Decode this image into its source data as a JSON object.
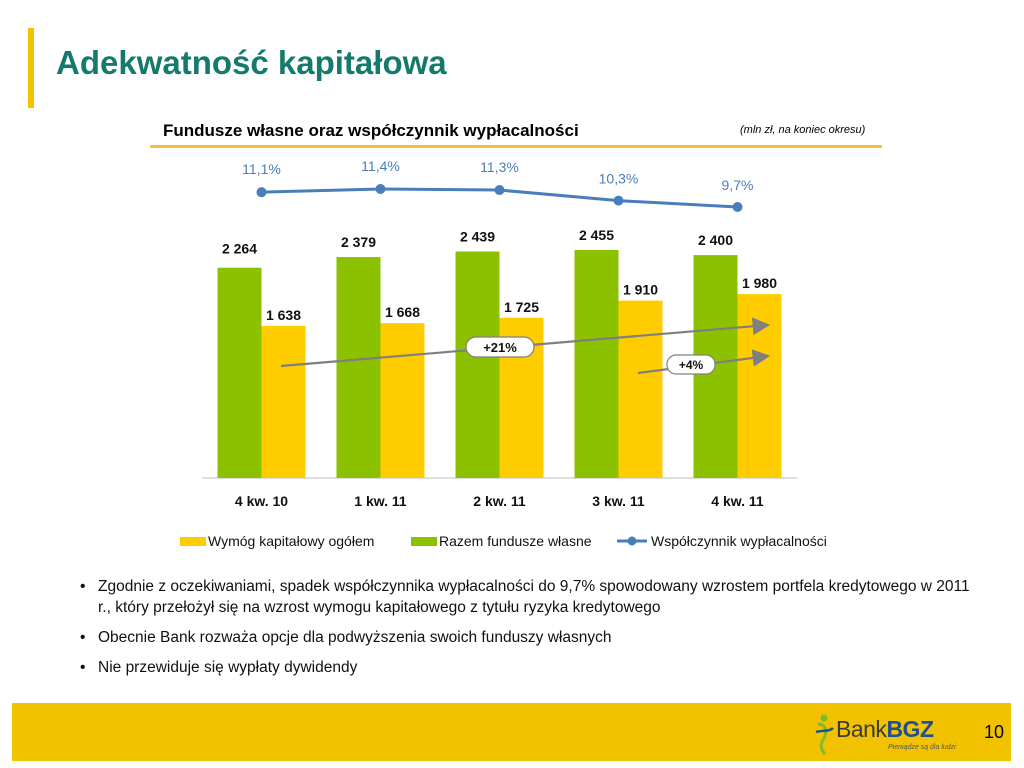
{
  "slide": {
    "title": "Adekwatność kapitałowa",
    "chart_title": "Fundusze własne oraz współczynnik wypłacalności",
    "unit_note": "(mln zł, na koniec okresu)",
    "page_number": "10",
    "logo": {
      "brand_light": "Bank",
      "brand_bold": "BGZ",
      "tagline": "Pieniądze są dla ludzi"
    },
    "bullets": [
      "Zgodnie z oczekiwaniami, spadek współczynnika wypłacalności do 9,7% spowodowany wzrostem portfela kredytowego w 2011 r., który przełożył się na wzrost wymogu kapitałowego z tytułu ryzyka kredytowego",
      "Obecnie Bank rozważa opcje dla podwyższenia swoich funduszy własnych",
      "Nie przewiduje się wypłaty dywidendy"
    ]
  },
  "chart_data": {
    "type": "bar",
    "categories": [
      "4 kw. 10",
      "1 kw. 11",
      "2 kw. 11",
      "3 kw. 11",
      "4 kw. 11"
    ],
    "series": [
      {
        "name": "Razem fundusze własne",
        "type": "bar",
        "color": "#8cc100",
        "values": [
          2264,
          2379,
          2439,
          2455,
          2400
        ],
        "labels": [
          "2 264",
          "2 379",
          "2 439",
          "2 455",
          "2 400"
        ]
      },
      {
        "name": "Wymóg kapitałowy ogółem",
        "type": "bar",
        "color": "#ffcc00",
        "values": [
          1638,
          1668,
          1725,
          1910,
          1980
        ],
        "labels": [
          "1 638",
          "1 668",
          "1 725",
          "1 910",
          "1 980"
        ]
      },
      {
        "name": "Współczynnik wypłacalności",
        "type": "line",
        "color": "#4a7ebb",
        "values": [
          11.1,
          11.4,
          11.3,
          10.3,
          9.7
        ],
        "labels": [
          "11,1%",
          "11,4%",
          "11,3%",
          "10,3%",
          "9,7%"
        ]
      }
    ],
    "legend": [
      "Wymóg kapitałowy ogółem",
      "Razem fundusze własne",
      "Współczynnik wypłacalności"
    ],
    "legend_position": "bottom",
    "annotations": [
      {
        "text": "+21%",
        "from_category": "4 kw. 10",
        "to_category": "4 kw. 11"
      },
      {
        "text": "+4%",
        "from_category": "3 kw. 11",
        "to_category": "4 kw. 11"
      }
    ],
    "ylim": [
      0,
      2700
    ],
    "grid": false
  }
}
